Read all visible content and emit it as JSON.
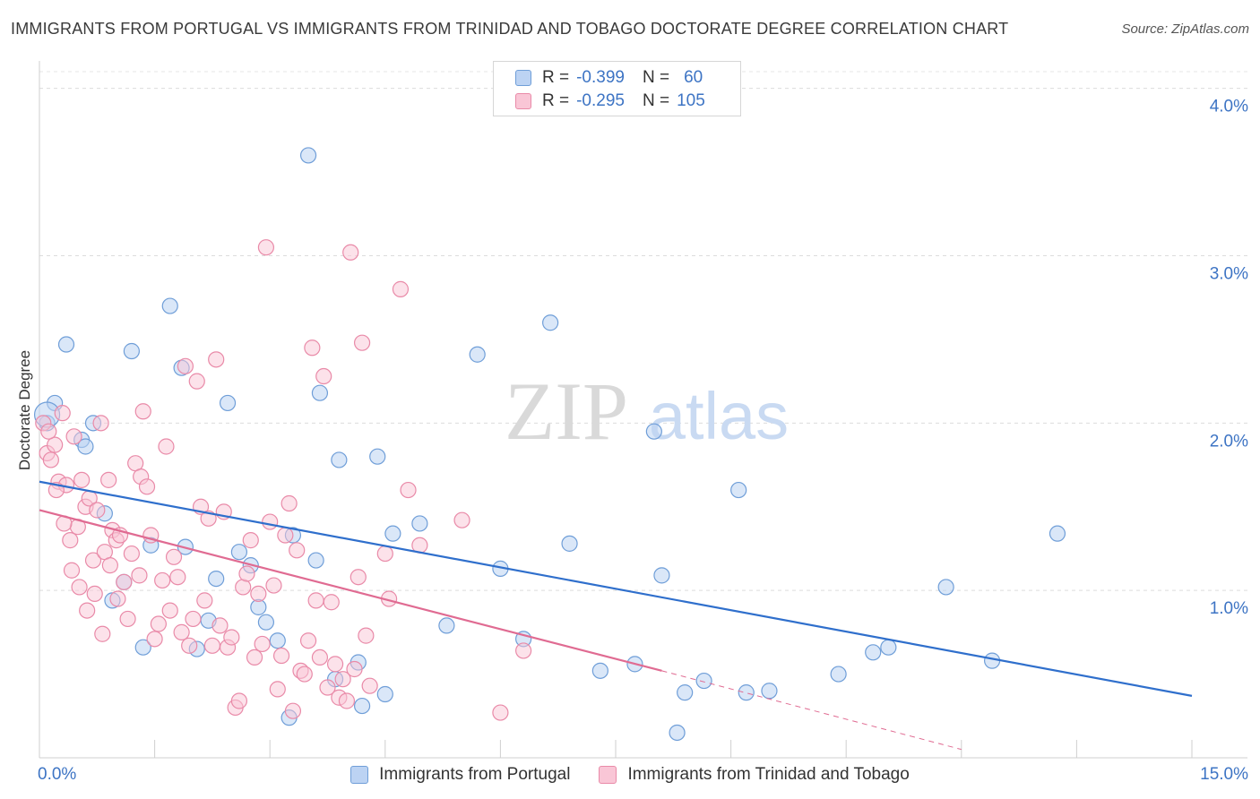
{
  "title": "IMMIGRANTS FROM PORTUGAL VS IMMIGRANTS FROM TRINIDAD AND TOBAGO DOCTORATE DEGREE CORRELATION CHART",
  "source": "Source: ZipAtlas.com",
  "watermark": {
    "zip": "ZIP",
    "atlas": "atlas"
  },
  "legend": {
    "rows": [
      {
        "r_label": "R =",
        "r_value": "-0.399",
        "n_label": "N =",
        "n_value": "60"
      },
      {
        "r_label": "R =",
        "r_value": "-0.295",
        "n_label": "N =",
        "n_value": "105"
      }
    ]
  },
  "chart_data": {
    "type": "scatter",
    "xlabel": "",
    "ylabel": "Doctorate Degree",
    "xlim": [
      0,
      15
    ],
    "ylim": [
      0,
      4.1
    ],
    "x_tick_labels": [
      "0.0%",
      "15.0%"
    ],
    "y_ticks": [
      1,
      2,
      3,
      4
    ],
    "y_tick_labels": [
      "1.0%",
      "2.0%",
      "3.0%",
      "4.0%"
    ],
    "grid": "horizontal dashed",
    "colors": {
      "blue": "#6f9ed8",
      "blue_fill": "#bcd3f3",
      "blue_line": "#2f6fcc",
      "pink": "#e98aa8",
      "pink_fill": "#f9c6d6",
      "pink_line": "#e06b92"
    },
    "series": [
      {
        "name": "Immigrants from Portugal",
        "color": "#6f9ed8",
        "trend": {
          "x": [
            0,
            15
          ],
          "y": [
            1.65,
            0.37
          ]
        },
        "points": [
          [
            0.1,
            2.0
          ],
          [
            0.2,
            2.12
          ],
          [
            0.35,
            2.47
          ],
          [
            0.55,
            1.9
          ],
          [
            0.6,
            1.86
          ],
          [
            0.7,
            2.0
          ],
          [
            0.85,
            1.46
          ],
          [
            0.95,
            0.94
          ],
          [
            1.1,
            1.05
          ],
          [
            1.2,
            2.43
          ],
          [
            1.35,
            0.66
          ],
          [
            1.45,
            1.27
          ],
          [
            1.7,
            2.7
          ],
          [
            1.85,
            2.33
          ],
          [
            1.9,
            1.26
          ],
          [
            2.05,
            0.65
          ],
          [
            2.2,
            0.82
          ],
          [
            2.3,
            1.07
          ],
          [
            2.45,
            2.12
          ],
          [
            2.6,
            1.23
          ],
          [
            2.75,
            1.15
          ],
          [
            2.85,
            0.9
          ],
          [
            2.95,
            0.81
          ],
          [
            3.1,
            0.7
          ],
          [
            3.25,
            0.24
          ],
          [
            3.3,
            1.33
          ],
          [
            3.5,
            3.6
          ],
          [
            3.6,
            1.18
          ],
          [
            3.65,
            2.18
          ],
          [
            3.85,
            0.47
          ],
          [
            3.9,
            1.78
          ],
          [
            4.15,
            0.57
          ],
          [
            4.2,
            0.31
          ],
          [
            4.4,
            1.8
          ],
          [
            4.5,
            0.38
          ],
          [
            4.6,
            1.34
          ],
          [
            4.95,
            1.4
          ],
          [
            5.3,
            0.79
          ],
          [
            5.7,
            2.41
          ],
          [
            6.0,
            1.13
          ],
          [
            6.3,
            0.71
          ],
          [
            6.65,
            2.6
          ],
          [
            6.9,
            1.28
          ],
          [
            7.3,
            0.52
          ],
          [
            7.75,
            0.56
          ],
          [
            8.0,
            1.95
          ],
          [
            8.1,
            1.09
          ],
          [
            8.3,
            0.15
          ],
          [
            8.4,
            0.39
          ],
          [
            8.65,
            0.46
          ],
          [
            9.1,
            1.6
          ],
          [
            9.2,
            0.39
          ],
          [
            9.5,
            0.4
          ],
          [
            10.4,
            0.5
          ],
          [
            10.85,
            0.63
          ],
          [
            11.05,
            0.66
          ],
          [
            11.8,
            1.02
          ],
          [
            12.4,
            0.58
          ],
          [
            13.25,
            1.34
          ],
          [
            0.1,
            2.05
          ]
        ]
      },
      {
        "name": "Immigrants from Trinidad and Tobago",
        "color": "#e98aa8",
        "trend": {
          "x": [
            0,
            8.1
          ],
          "y": [
            1.48,
            0.52
          ]
        },
        "trend_extension": {
          "x": [
            8.1,
            12.0
          ],
          "y": [
            0.52,
            0.05
          ]
        },
        "points": [
          [
            0.05,
            2.0
          ],
          [
            0.1,
            1.82
          ],
          [
            0.15,
            1.78
          ],
          [
            0.2,
            1.87
          ],
          [
            0.25,
            1.65
          ],
          [
            0.3,
            2.06
          ],
          [
            0.35,
            1.63
          ],
          [
            0.4,
            1.3
          ],
          [
            0.45,
            1.92
          ],
          [
            0.5,
            1.38
          ],
          [
            0.55,
            1.66
          ],
          [
            0.6,
            1.5
          ],
          [
            0.65,
            1.55
          ],
          [
            0.7,
            1.18
          ],
          [
            0.75,
            1.48
          ],
          [
            0.8,
            2.0
          ],
          [
            0.85,
            1.23
          ],
          [
            0.9,
            1.66
          ],
          [
            0.95,
            1.36
          ],
          [
            1.0,
            1.3
          ],
          [
            1.05,
            1.33
          ],
          [
            1.1,
            1.05
          ],
          [
            1.15,
            0.83
          ],
          [
            1.2,
            1.22
          ],
          [
            1.25,
            1.76
          ],
          [
            1.3,
            1.09
          ],
          [
            1.32,
            1.68
          ],
          [
            1.35,
            2.07
          ],
          [
            1.4,
            1.62
          ],
          [
            1.45,
            1.33
          ],
          [
            1.5,
            0.71
          ],
          [
            1.55,
            0.8
          ],
          [
            1.6,
            1.06
          ],
          [
            1.65,
            1.86
          ],
          [
            1.7,
            0.88
          ],
          [
            1.75,
            1.2
          ],
          [
            1.8,
            1.08
          ],
          [
            1.85,
            0.75
          ],
          [
            1.9,
            2.34
          ],
          [
            1.95,
            0.67
          ],
          [
            2.0,
            0.83
          ],
          [
            2.05,
            2.25
          ],
          [
            2.1,
            1.5
          ],
          [
            2.15,
            0.94
          ],
          [
            2.2,
            1.43
          ],
          [
            2.25,
            0.67
          ],
          [
            2.3,
            2.38
          ],
          [
            2.35,
            0.79
          ],
          [
            2.4,
            1.47
          ],
          [
            2.45,
            0.66
          ],
          [
            2.5,
            0.72
          ],
          [
            2.55,
            0.3
          ],
          [
            2.6,
            0.34
          ],
          [
            2.65,
            1.02
          ],
          [
            2.7,
            1.1
          ],
          [
            2.75,
            1.3
          ],
          [
            2.8,
            0.6
          ],
          [
            2.85,
            0.98
          ],
          [
            2.9,
            0.68
          ],
          [
            2.95,
            3.05
          ],
          [
            3.0,
            1.41
          ],
          [
            3.05,
            1.03
          ],
          [
            3.1,
            0.41
          ],
          [
            3.15,
            0.61
          ],
          [
            3.2,
            1.33
          ],
          [
            3.25,
            1.52
          ],
          [
            3.3,
            0.28
          ],
          [
            3.35,
            1.24
          ],
          [
            3.4,
            0.52
          ],
          [
            3.45,
            0.5
          ],
          [
            3.5,
            0.7
          ],
          [
            3.55,
            2.45
          ],
          [
            3.6,
            0.94
          ],
          [
            3.65,
            0.6
          ],
          [
            3.7,
            2.28
          ],
          [
            3.75,
            0.42
          ],
          [
            3.8,
            0.93
          ],
          [
            3.85,
            0.56
          ],
          [
            3.9,
            0.36
          ],
          [
            3.95,
            0.47
          ],
          [
            4.0,
            0.34
          ],
          [
            4.05,
            3.02
          ],
          [
            4.1,
            0.53
          ],
          [
            4.15,
            1.08
          ],
          [
            4.2,
            2.48
          ],
          [
            4.25,
            0.73
          ],
          [
            4.3,
            0.43
          ],
          [
            4.5,
            1.22
          ],
          [
            4.55,
            0.95
          ],
          [
            4.7,
            2.8
          ],
          [
            4.8,
            1.6
          ],
          [
            4.95,
            1.27
          ],
          [
            5.5,
            1.42
          ],
          [
            6.0,
            0.27
          ],
          [
            6.3,
            0.64
          ],
          [
            0.12,
            1.95
          ],
          [
            0.22,
            1.6
          ],
          [
            0.32,
            1.4
          ],
          [
            0.42,
            1.12
          ],
          [
            0.52,
            1.02
          ],
          [
            0.62,
            0.88
          ],
          [
            0.72,
            0.98
          ],
          [
            0.82,
            0.74
          ],
          [
            0.92,
            1.15
          ],
          [
            1.02,
            0.95
          ]
        ]
      }
    ]
  }
}
